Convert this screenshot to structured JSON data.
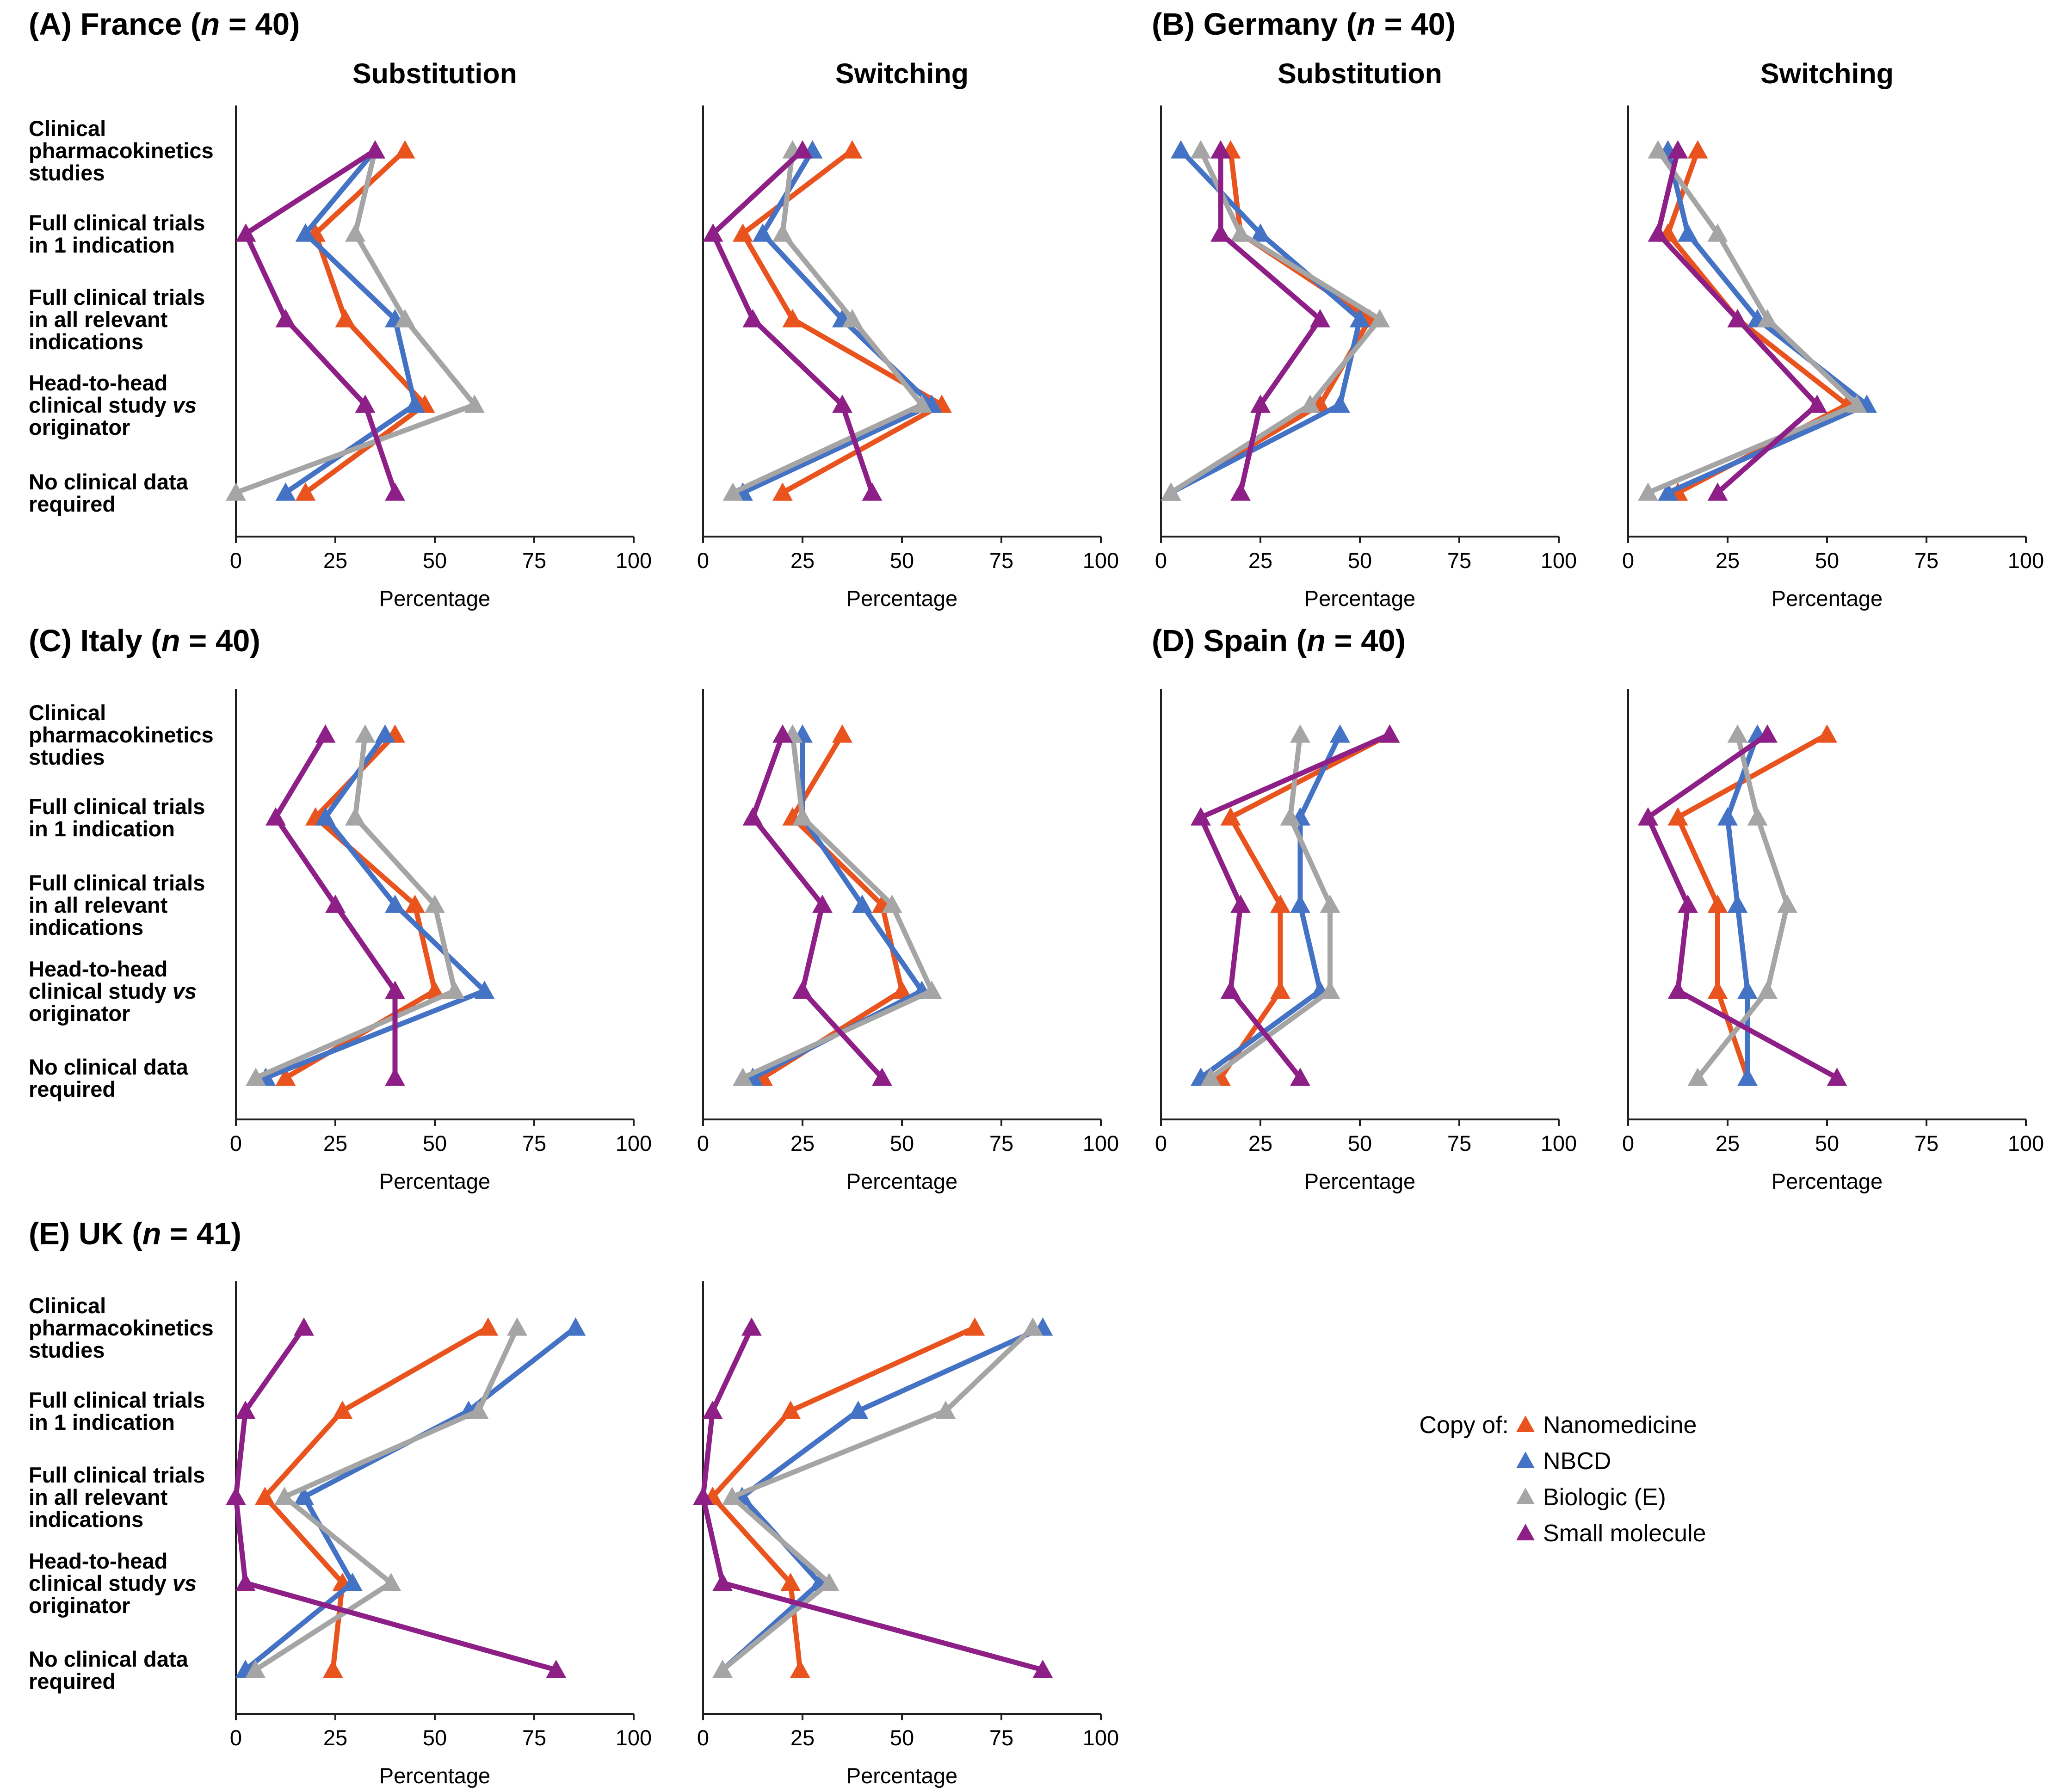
{
  "chart_data": {
    "type": "line",
    "orientation": "horizontal",
    "xlabel": "Percentage",
    "xlim": [
      0,
      100
    ],
    "xticks": [
      0,
      25,
      50,
      75,
      100
    ],
    "column_titles": [
      "Substitution",
      "Switching"
    ],
    "categories": [
      [
        "Clinical",
        "pharmacokinetics",
        "studies"
      ],
      [
        "Full clinical trials",
        "in 1 indication"
      ],
      [
        "Full clinical trials",
        "in all relevant",
        "indications"
      ],
      [
        "Head-to-head",
        "clinical study |vs|",
        "originator"
      ],
      [
        "No clinical data",
        "required"
      ]
    ],
    "legend": {
      "title": "Copy of:",
      "items": [
        {
          "name": "Nanomedicine",
          "color": "#e9541e"
        },
        {
          "name": "NBCD",
          "color": "#4472c4"
        },
        {
          "name": "Biologic (E)",
          "color": "#a5a5a5"
        },
        {
          "name": "Small molecule",
          "color": "#8e1f87"
        }
      ]
    },
    "panels": [
      {
        "title_pre": "(A) France (",
        "title_italic": "n",
        "title_post": " = 40)",
        "substitution": {
          "Nanomedicine": [
            42.5,
            20,
            27.5,
            47.5,
            17.5
          ],
          "NBCD": [
            35,
            17.5,
            40,
            45,
            12.5
          ],
          "Biologic (E)": [
            35,
            30,
            42.5,
            60,
            0
          ],
          "Small molecule": [
            35,
            2.5,
            12.5,
            32.5,
            40
          ]
        },
        "switching": {
          "Nanomedicine": [
            37.5,
            10,
            22.5,
            60,
            20
          ],
          "NBCD": [
            27.5,
            15,
            35,
            57.5,
            10
          ],
          "Biologic (E)": [
            22.5,
            20,
            37.5,
            55,
            7.5
          ],
          "Small molecule": [
            25,
            2.5,
            12.5,
            35,
            42.5
          ]
        }
      },
      {
        "title_pre": "(B) Germany (",
        "title_italic": "n",
        "title_post": " = 40)",
        "substitution": {
          "Nanomedicine": [
            17.5,
            20,
            52.5,
            40,
            2.5
          ],
          "NBCD": [
            5,
            25,
            50,
            45,
            2.5
          ],
          "Biologic (E)": [
            10,
            20,
            55,
            37.5,
            2.5
          ],
          "Small molecule": [
            15,
            15,
            40,
            25,
            20
          ]
        },
        "switching": {
          "Nanomedicine": [
            17.5,
            10,
            27.5,
            55,
            12.5
          ],
          "NBCD": [
            10,
            15,
            32.5,
            60,
            10
          ],
          "Biologic (E)": [
            7.5,
            22.5,
            35,
            57.5,
            5
          ],
          "Small molecule": [
            12.5,
            7.5,
            27.5,
            47.5,
            22.5
          ]
        }
      },
      {
        "title_pre": "(C) Italy (",
        "title_italic": "n",
        "title_post": " = 40)",
        "substitution": {
          "Nanomedicine": [
            40,
            20,
            45,
            50,
            12.5
          ],
          "NBCD": [
            37.5,
            22.5,
            40,
            62.5,
            7.5
          ],
          "Biologic (E)": [
            32.5,
            30,
            50,
            55,
            5
          ],
          "Small molecule": [
            22.5,
            10,
            25,
            40,
            40
          ]
        },
        "switching": {
          "Nanomedicine": [
            35,
            22.5,
            45,
            50,
            15
          ],
          "NBCD": [
            25,
            25,
            40,
            55,
            12.5
          ],
          "Biologic (E)": [
            22.5,
            25,
            47.5,
            57.5,
            10
          ],
          "Small molecule": [
            20,
            12.5,
            30,
            25,
            45
          ]
        }
      },
      {
        "title_pre": "(D) Spain (",
        "title_italic": "n",
        "title_post": " = 40)",
        "substitution": {
          "Nanomedicine": [
            57.5,
            17.5,
            30,
            30,
            15
          ],
          "NBCD": [
            45,
            35,
            35,
            40,
            10
          ],
          "Biologic (E)": [
            35,
            32.5,
            42.5,
            42.5,
            12.5
          ],
          "Small molecule": [
            57.5,
            10,
            20,
            17.5,
            35
          ]
        },
        "switching": {
          "Nanomedicine": [
            50,
            12.5,
            22.5,
            22.5,
            30
          ],
          "NBCD": [
            32.5,
            25,
            27.5,
            30,
            30
          ],
          "Biologic (E)": [
            27.5,
            32.5,
            40,
            35,
            17.5
          ],
          "Small molecule": [
            35,
            5,
            15,
            12.5,
            52.5
          ]
        }
      },
      {
        "title_pre": "(E) UK (",
        "title_italic": "n",
        "title_post": " = 41)",
        "substitution": {
          "Nanomedicine": [
            63.4,
            26.8,
            7.3,
            26.8,
            24.4
          ],
          "NBCD": [
            85.4,
            58.5,
            17.1,
            29.3,
            2.4
          ],
          "Biologic (E)": [
            70.7,
            61,
            12.2,
            39,
            4.9
          ],
          "Small molecule": [
            17.1,
            2.4,
            0,
            2.4,
            80.5
          ]
        },
        "switching": {
          "Nanomedicine": [
            68.3,
            22,
            2.4,
            22,
            24.4
          ],
          "NBCD": [
            85.4,
            39,
            9.8,
            29.3,
            4.9
          ],
          "Biologic (E)": [
            82.9,
            61,
            7.3,
            31.7,
            4.9
          ],
          "Small molecule": [
            12.2,
            2.4,
            0,
            4.9,
            85.4
          ]
        }
      }
    ]
  }
}
